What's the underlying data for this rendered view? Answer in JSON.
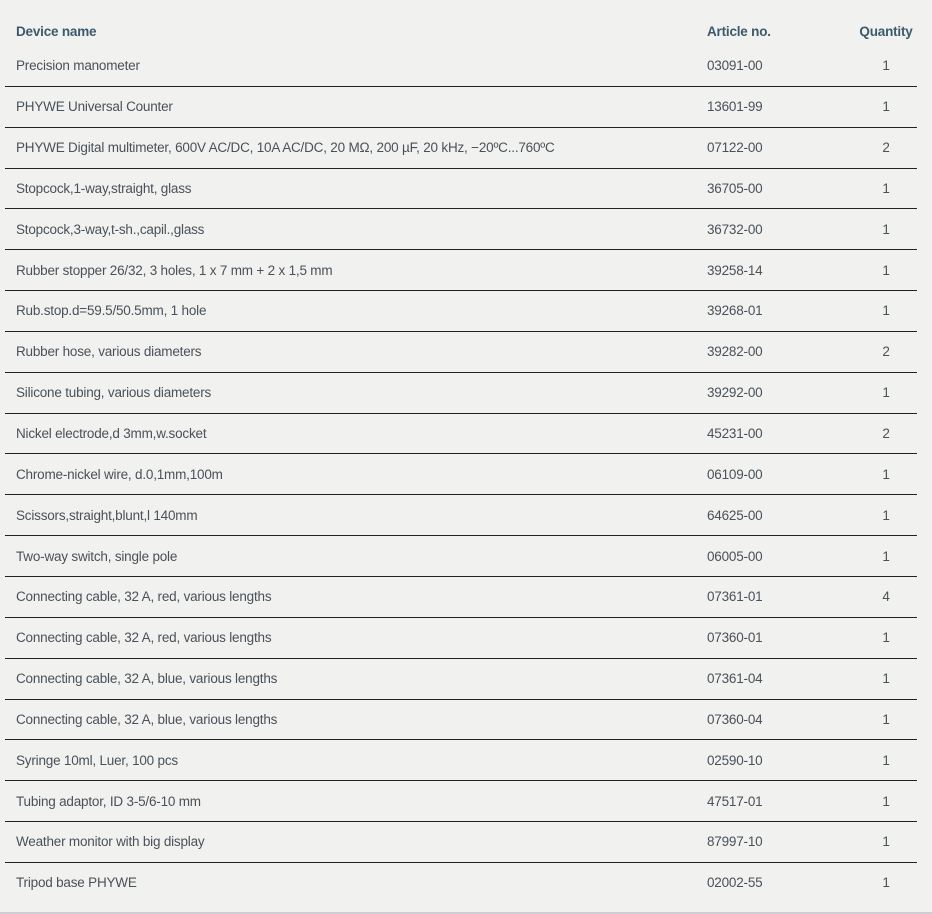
{
  "colors": {
    "background": "#f1f1ef",
    "header_text": "#3c5a6c",
    "body_text": "#48525a",
    "row_divider": "#222222",
    "bottom_border": "#cdcdd3"
  },
  "table": {
    "columns": [
      {
        "label": "Device name",
        "align": "left"
      },
      {
        "label": "Article no.",
        "align": "left"
      },
      {
        "label": "Quantity",
        "align": "center"
      }
    ],
    "rows": [
      {
        "device": "Precision manometer",
        "article": "03091-00",
        "qty": "1"
      },
      {
        "device": "PHYWE Universal Counter",
        "article": "13601-99",
        "qty": "1"
      },
      {
        "device": "PHYWE Digital multimeter, 600V AC/DC, 10A AC/DC, 20 MΩ, 200 µF, 20 kHz, −20ºC...760ºC",
        "article": "07122-00",
        "qty": "2"
      },
      {
        "device": "Stopcock,1-way,straight, glass",
        "article": "36705-00",
        "qty": "1"
      },
      {
        "device": "Stopcock,3-way,t-sh.,capil.,glass",
        "article": "36732-00",
        "qty": "1"
      },
      {
        "device": "Rubber stopper 26/32, 3 holes, 1 x 7 mm + 2 x 1,5 mm",
        "article": "39258-14",
        "qty": "1"
      },
      {
        "device": "Rub.stop.d=59.5/50.5mm, 1 hole",
        "article": "39268-01",
        "qty": "1"
      },
      {
        "device": "Rubber hose, various diameters",
        "article": "39282-00",
        "qty": "2"
      },
      {
        "device": "Silicone tubing, various diameters",
        "article": "39292-00",
        "qty": "1"
      },
      {
        "device": "Nickel electrode,d 3mm,w.socket",
        "article": "45231-00",
        "qty": "2"
      },
      {
        "device": "Chrome-nickel wire, d.0,1mm,100m",
        "article": "06109-00",
        "qty": "1"
      },
      {
        "device": "Scissors,straight,blunt,l 140mm",
        "article": "64625-00",
        "qty": "1"
      },
      {
        "device": "Two-way switch, single pole",
        "article": "06005-00",
        "qty": "1"
      },
      {
        "device": "Connecting cable, 32 A, red, various lengths",
        "article": "07361-01",
        "qty": "4"
      },
      {
        "device": "Connecting cable, 32 A, red, various lengths",
        "article": "07360-01",
        "qty": "1"
      },
      {
        "device": "Connecting cable, 32 A, blue, various lengths",
        "article": "07361-04",
        "qty": "1"
      },
      {
        "device": "Connecting cable, 32 A, blue, various lengths",
        "article": "07360-04",
        "qty": "1"
      },
      {
        "device": "Syringe 10ml, Luer, 100 pcs",
        "article": "02590-10",
        "qty": "1"
      },
      {
        "device": "Tubing adaptor, ID 3-5/6-10 mm",
        "article": "47517-01",
        "qty": "1"
      },
      {
        "device": "Weather monitor with big display",
        "article": "87997-10",
        "qty": "1"
      },
      {
        "device": "Tripod base PHYWE",
        "article": "02002-55",
        "qty": "1"
      }
    ]
  }
}
